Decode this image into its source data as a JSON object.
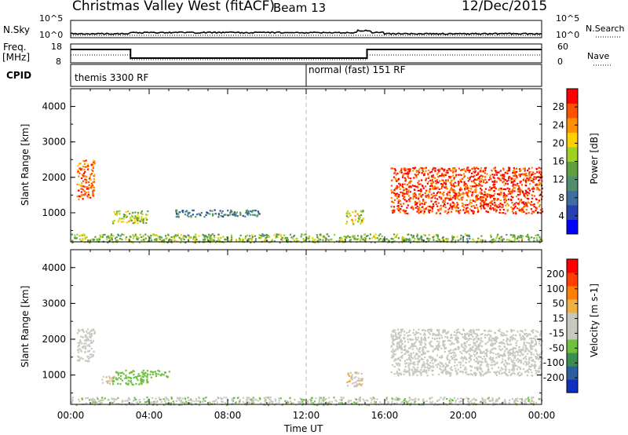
{
  "header": {
    "title": "Christmas Valley West (fitACF)",
    "beam": "Beam 13",
    "date": "12/Dec/2015"
  },
  "top_panels": {
    "nsky_label": "N.Sky",
    "nsearch_label": "N.Search",
    "nsky_ticks": [
      "10^5",
      "10^0"
    ],
    "nsearch_ticks": [
      "10^5",
      "10^0"
    ],
    "freq_label_1": "Freq.",
    "freq_label_2": "[MHz]",
    "freq_ticks": [
      "18",
      "8"
    ],
    "nave_label": "Nave",
    "nave_ticks": [
      "60",
      "0"
    ],
    "cpid_label": "CPID",
    "cpid_1": "themis 3300 RF",
    "cpid_2": "normal (fast) 151 RF"
  },
  "colors": {
    "power_scale": [
      "#0000ff",
      "#2a3fb0",
      "#3f6fa0",
      "#4f8f70",
      "#60a040",
      "#a0d020",
      "#ffd000",
      "#ff9000",
      "#ff5000",
      "#ff0000"
    ],
    "velocity_scale": [
      "#1030c0",
      "#2a5fa0",
      "#3a8f50",
      "#70c040",
      "#c8c8c0",
      "#c8c8c0",
      "#f0b040",
      "#ff8000",
      "#ff4000",
      "#ff0000"
    ]
  },
  "chart_data": [
    {
      "type": "heatmap",
      "panel": "power",
      "ylabel": "Slant Range [km]",
      "colorbar_label": "Power [dB]",
      "colorbar_ticks": [
        "28",
        "24",
        "20",
        "16",
        "12",
        "8",
        "4"
      ],
      "colorbar_range": [
        0,
        32
      ],
      "ylim": [
        180,
        4500
      ],
      "y_ticks": [
        "4000",
        "3000",
        "2000",
        "1000"
      ],
      "y_tick_values": [
        4000,
        3000,
        2000,
        1000
      ],
      "x_range_hours": [
        0,
        24
      ],
      "features": [
        {
          "t0": 0.3,
          "t1": 1.2,
          "r0": 1400,
          "r1": 2500,
          "value": 26
        },
        {
          "t0": 2.1,
          "t1": 3.9,
          "r0": 720,
          "r1": 1080,
          "value": 18
        },
        {
          "t0": 5.3,
          "t1": 9.6,
          "r0": 900,
          "r1": 1100,
          "value": 10
        },
        {
          "t0": 14.0,
          "t1": 14.9,
          "r0": 700,
          "r1": 1100,
          "value": 18
        },
        {
          "t0": 16.3,
          "t1": 24.0,
          "r0": 1000,
          "r1": 2300,
          "value": 28
        },
        {
          "t0": 0.0,
          "t1": 24.0,
          "r0": 180,
          "r1": 420,
          "value": 16
        }
      ]
    },
    {
      "type": "heatmap",
      "panel": "velocity",
      "ylabel": "Slant Range [km]",
      "xlabel": "Time UT",
      "colorbar_label": "Velocity [m s-1]",
      "colorbar_ticks": [
        "200",
        "100",
        "50",
        "15",
        "-15",
        "-50",
        "-100",
        "-200"
      ],
      "colorbar_range": [
        -250,
        250
      ],
      "ylim": [
        180,
        4500
      ],
      "y_ticks": [
        "4000",
        "3000",
        "2000",
        "1000"
      ],
      "y_tick_values": [
        4000,
        3000,
        2000,
        1000
      ],
      "x_ticks": [
        "00:00",
        "04:00",
        "08:00",
        "12:00",
        "16:00",
        "20:00",
        "00:00"
      ],
      "x_tick_values": [
        0,
        4,
        8,
        12,
        16,
        20,
        24
      ],
      "x_range_hours": [
        0,
        24
      ],
      "features": [
        {
          "t0": 0.3,
          "t1": 1.2,
          "r0": 1400,
          "r1": 2300,
          "value": 0
        },
        {
          "t0": 1.5,
          "t1": 2.2,
          "r0": 780,
          "r1": 1000,
          "value": 40
        },
        {
          "t0": 2.1,
          "t1": 3.9,
          "r0": 750,
          "r1": 1150,
          "value": -80
        },
        {
          "t0": 4.0,
          "t1": 5.0,
          "r0": 950,
          "r1": 1150,
          "value": -70
        },
        {
          "t0": 14.0,
          "t1": 14.9,
          "r0": 700,
          "r1": 1100,
          "value": 40
        },
        {
          "t0": 16.3,
          "t1": 24.0,
          "r0": 1000,
          "r1": 2300,
          "value": 0
        },
        {
          "t0": 0.0,
          "t1": 24.0,
          "r0": 180,
          "r1": 400,
          "value": -40
        }
      ]
    }
  ]
}
